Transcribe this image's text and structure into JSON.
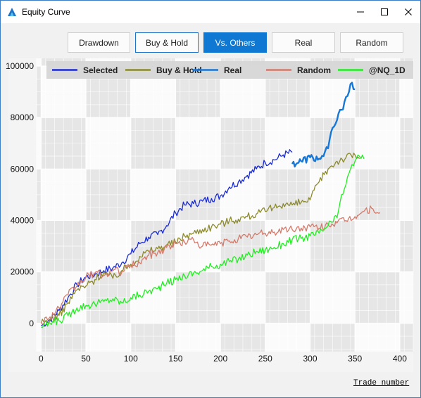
{
  "window": {
    "title": "Equity Curve",
    "icon": "app-logo-icon",
    "controls": [
      "minimize-icon",
      "maximize-icon",
      "close-icon"
    ]
  },
  "toolbar": {
    "buttons": [
      {
        "label": "Drawdown",
        "state": "normal"
      },
      {
        "label": "Buy & Hold",
        "state": "outlined"
      },
      {
        "label": "Vs. Others",
        "state": "active"
      },
      {
        "label": "Real",
        "state": "normal"
      },
      {
        "label": "Random",
        "state": "normal"
      }
    ],
    "active_color": "#0f78d2"
  },
  "chart_data": {
    "type": "line",
    "title": "",
    "xlabel": "Trade number",
    "ylabel": "",
    "xlim": [
      -5,
      415
    ],
    "ylim": [
      -11000,
      103000
    ],
    "xticks": [
      0,
      50,
      100,
      150,
      200,
      250,
      300,
      350,
      400
    ],
    "yticks": [
      0,
      20000,
      40000,
      60000,
      80000,
      100000
    ],
    "legend_position": "top",
    "grid": true,
    "series": [
      {
        "name": "Selected",
        "color": "#1a2bd6",
        "x": [
          0,
          10,
          20,
          30,
          40,
          50,
          60,
          70,
          80,
          90,
          100,
          110,
          120,
          130,
          140,
          150,
          160,
          170,
          180,
          190,
          200,
          210,
          220,
          230,
          240,
          250,
          260,
          270,
          280
        ],
        "y": [
          -1000,
          1500,
          5000,
          10000,
          15000,
          18000,
          19000,
          20500,
          21500,
          23500,
          27000,
          31000,
          33500,
          34500,
          38000,
          43000,
          46000,
          46500,
          47500,
          48500,
          49500,
          53000,
          55000,
          57500,
          60000,
          62500,
          63500,
          65500,
          66500
        ]
      },
      {
        "name": "Real",
        "color": "#1677d8",
        "width": 2.4,
        "x": [
          280,
          290,
          300,
          310,
          315,
          320,
          325,
          330,
          335,
          340,
          345,
          350
        ],
        "y": [
          62000,
          63000,
          64500,
          64000,
          65000,
          68000,
          76000,
          79000,
          83000,
          88000,
          93000,
          91000
        ]
      },
      {
        "name": "Buy & Hold",
        "color": "#8c8a2a",
        "x": [
          0,
          10,
          20,
          30,
          40,
          50,
          60,
          70,
          80,
          90,
          100,
          110,
          120,
          130,
          140,
          150,
          160,
          170,
          180,
          190,
          200,
          210,
          220,
          230,
          240,
          250,
          260,
          270,
          280,
          290,
          300,
          310,
          320,
          330,
          340,
          350,
          355
        ],
        "y": [
          0,
          1500,
          3000,
          8000,
          13000,
          14500,
          17000,
          20000,
          17500,
          20500,
          23000,
          26000,
          28000,
          29000,
          30500,
          31500,
          34000,
          35000,
          36500,
          37500,
          38500,
          40000,
          40500,
          41500,
          42500,
          43500,
          45000,
          46500,
          46000,
          47000,
          48000,
          55000,
          60000,
          63000,
          64500,
          65500,
          64000
        ]
      },
      {
        "name": "Random",
        "color": "#d47a6b",
        "x": [
          0,
          10,
          20,
          30,
          40,
          50,
          60,
          70,
          80,
          90,
          100,
          110,
          120,
          130,
          140,
          150,
          160,
          170,
          180,
          190,
          200,
          210,
          220,
          230,
          240,
          250,
          260,
          270,
          280,
          290,
          300,
          310,
          320,
          330,
          340,
          350,
          360,
          370,
          378
        ],
        "y": [
          500,
          2500,
          6000,
          11000,
          14500,
          18000,
          19500,
          18500,
          20500,
          20000,
          22500,
          23500,
          26500,
          27500,
          29500,
          31000,
          31500,
          32500,
          30000,
          30500,
          31000,
          32000,
          33000,
          33500,
          34500,
          35000,
          35500,
          36500,
          36500,
          37000,
          37500,
          37000,
          38500,
          39000,
          40000,
          41500,
          43500,
          44500,
          43000
        ]
      },
      {
        "name": "@NQ_1D",
        "color": "#1df01d",
        "x": [
          0,
          10,
          20,
          30,
          40,
          50,
          60,
          70,
          80,
          90,
          100,
          110,
          120,
          130,
          140,
          150,
          160,
          170,
          180,
          190,
          200,
          210,
          220,
          230,
          240,
          250,
          260,
          270,
          280,
          290,
          300,
          310,
          320,
          330,
          335,
          340,
          345,
          350,
          355,
          360
        ],
        "y": [
          -1500,
          0,
          1000,
          3000,
          6000,
          7000,
          7500,
          8500,
          9500,
          8000,
          10000,
          11000,
          12500,
          13500,
          15500,
          17000,
          18500,
          19500,
          20500,
          22000,
          23000,
          24000,
          25000,
          26500,
          28000,
          28500,
          29500,
          31000,
          32500,
          33000,
          34000,
          35000,
          38000,
          41000,
          50000,
          54000,
          60000,
          63000,
          65000,
          64000
        ]
      }
    ]
  }
}
